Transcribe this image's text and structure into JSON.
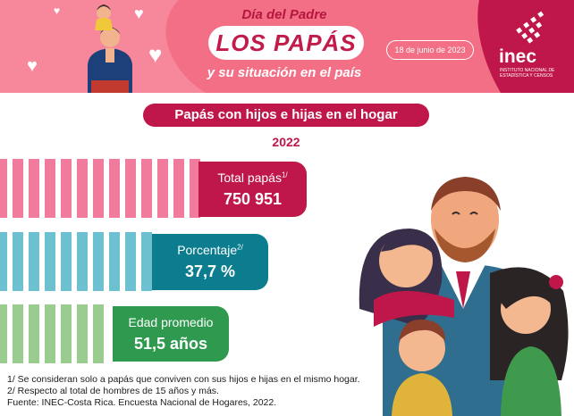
{
  "banner": {
    "kicker": "Día del Padre",
    "title": "LOS PAPÁS",
    "subtitle": "y su situación en el país",
    "date": "18 de junio de 2023",
    "logo_name": "inec",
    "logo_subtitle": "INSTITUTO NACIONAL DE ESTADÍSTICA Y CENSOS"
  },
  "section": {
    "title": "Papás con hijos e hijas en el hogar",
    "year": "2022"
  },
  "stats": [
    {
      "label": "Total papás",
      "note": "1/",
      "value": "750 951"
    },
    {
      "label": "Porcentaje",
      "note": "2/",
      "value": "37,7 %"
    },
    {
      "label": "Edad promedio",
      "note": "",
      "value": "51,5 años"
    }
  ],
  "notes": [
    "1/ Se consideran solo a papás que conviven con sus hijos e hijas en el mismo hogar.",
    "2/ Respecto al total de hombres de 15 años y más.",
    "Fuente: INEC-Costa Rica. Encuesta Nacional de Hogares, 2022."
  ],
  "colors": {
    "banner": "#f36f86",
    "accent": "#c0174b",
    "teal": "#0c7d8f",
    "green": "#2f9a4f",
    "stripe_pink": "#f07b9c",
    "stripe_teal": "#6cc0cf",
    "stripe_green": "#9acb8f"
  }
}
